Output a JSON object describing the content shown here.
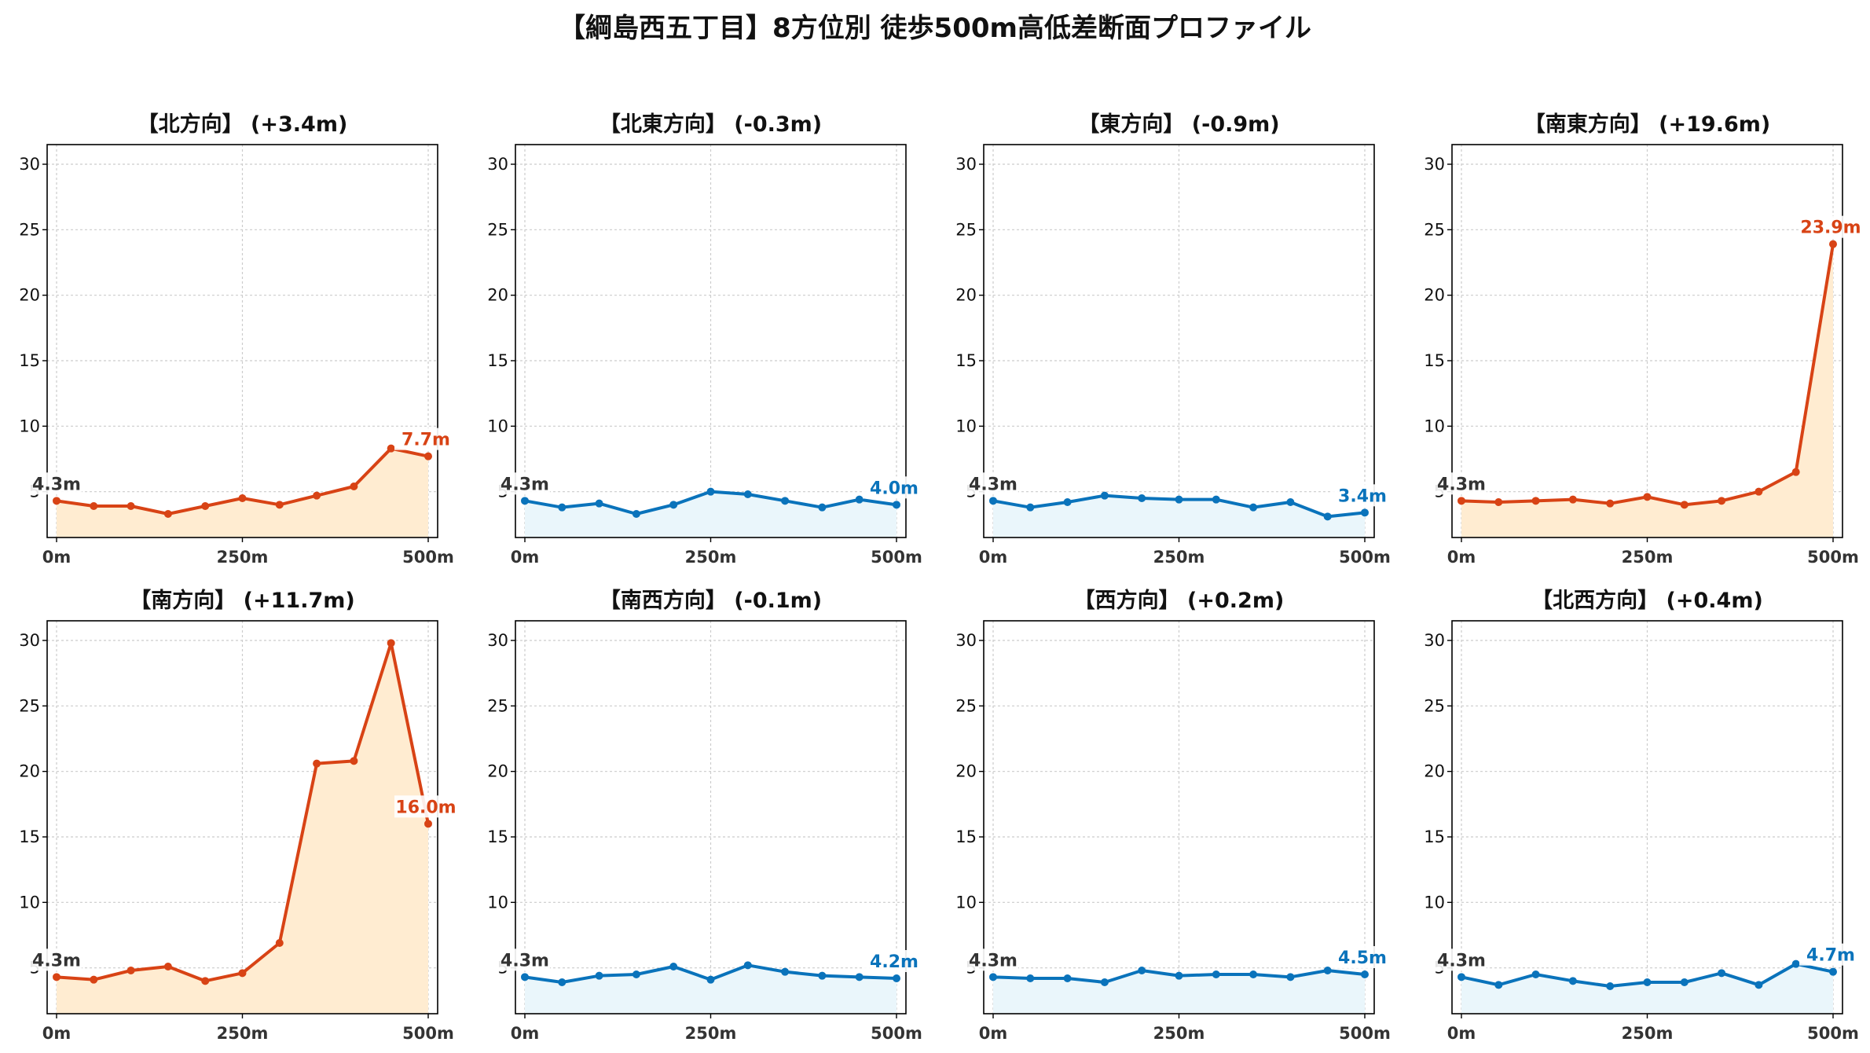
{
  "title": "【綱島西五丁目】8方位別 徒歩500m高低差断面プロファイル",
  "colors": {
    "up_line": "#D84315",
    "up_fill": "#FFECD1",
    "down_line": "#0A73BB",
    "down_fill": "#EAF6FB",
    "grid": "#CCCCCC",
    "start_label": "#333333"
  },
  "chart_data": [
    {
      "type": "line",
      "title": "【北方向】 (+3.4m)",
      "trend": "up",
      "x": [
        0,
        50,
        100,
        150,
        200,
        250,
        300,
        350,
        400,
        450,
        500
      ],
      "values": [
        4.3,
        3.9,
        3.9,
        3.3,
        3.9,
        4.5,
        4.0,
        4.7,
        5.4,
        8.3,
        7.7
      ],
      "start_label": "4.3m",
      "end_label": "7.7m",
      "xticks": [
        "0m",
        "250m",
        "500m"
      ],
      "yticks": [
        "5",
        "10",
        "15",
        "20",
        "25",
        "30"
      ],
      "ylim": [
        1.5,
        31.5
      ],
      "grid": true
    },
    {
      "type": "line",
      "title": "【北東方向】 (-0.3m)",
      "trend": "down",
      "x": [
        0,
        50,
        100,
        150,
        200,
        250,
        300,
        350,
        400,
        450,
        500
      ],
      "values": [
        4.3,
        3.8,
        4.1,
        3.3,
        4.0,
        5.0,
        4.8,
        4.3,
        3.8,
        4.4,
        4.0
      ],
      "start_label": "4.3m",
      "end_label": "4.0m",
      "xticks": [
        "0m",
        "250m",
        "500m"
      ],
      "yticks": [
        "5",
        "10",
        "15",
        "20",
        "25",
        "30"
      ],
      "ylim": [
        1.5,
        31.5
      ],
      "grid": true
    },
    {
      "type": "line",
      "title": "【東方向】 (-0.9m)",
      "trend": "down",
      "x": [
        0,
        50,
        100,
        150,
        200,
        250,
        300,
        350,
        400,
        450,
        500
      ],
      "values": [
        4.3,
        3.8,
        4.2,
        4.7,
        4.5,
        4.4,
        4.4,
        3.8,
        4.2,
        3.1,
        3.4
      ],
      "start_label": "4.3m",
      "end_label": "3.4m",
      "xticks": [
        "0m",
        "250m",
        "500m"
      ],
      "yticks": [
        "5",
        "10",
        "15",
        "20",
        "25",
        "30"
      ],
      "ylim": [
        1.5,
        31.5
      ],
      "grid": true
    },
    {
      "type": "line",
      "title": "【南東方向】 (+19.6m)",
      "trend": "up",
      "x": [
        0,
        50,
        100,
        150,
        200,
        250,
        300,
        350,
        400,
        450,
        500
      ],
      "values": [
        4.3,
        4.2,
        4.3,
        4.4,
        4.1,
        4.6,
        4.0,
        4.3,
        5.0,
        6.5,
        23.9
      ],
      "start_label": "4.3m",
      "end_label": "23.9m",
      "xticks": [
        "0m",
        "250m",
        "500m"
      ],
      "yticks": [
        "5",
        "10",
        "15",
        "20",
        "25",
        "30"
      ],
      "ylim": [
        1.5,
        31.5
      ],
      "grid": true
    },
    {
      "type": "line",
      "title": "【南方向】 (+11.7m)",
      "trend": "up",
      "x": [
        0,
        50,
        100,
        150,
        200,
        250,
        300,
        350,
        400,
        450,
        500
      ],
      "values": [
        4.3,
        4.1,
        4.8,
        5.1,
        4.0,
        4.6,
        6.9,
        20.6,
        20.8,
        29.8,
        16.0
      ],
      "start_label": "4.3m",
      "end_label": "16.0m",
      "xticks": [
        "0m",
        "250m",
        "500m"
      ],
      "yticks": [
        "5",
        "10",
        "15",
        "20",
        "25",
        "30"
      ],
      "ylim": [
        1.5,
        31.5
      ],
      "grid": true
    },
    {
      "type": "line",
      "title": "【南西方向】 (-0.1m)",
      "trend": "down",
      "x": [
        0,
        50,
        100,
        150,
        200,
        250,
        300,
        350,
        400,
        450,
        500
      ],
      "values": [
        4.3,
        3.9,
        4.4,
        4.5,
        5.1,
        4.1,
        5.2,
        4.7,
        4.4,
        4.3,
        4.2
      ],
      "start_label": "4.3m",
      "end_label": "4.2m",
      "xticks": [
        "0m",
        "250m",
        "500m"
      ],
      "yticks": [
        "5",
        "10",
        "15",
        "20",
        "25",
        "30"
      ],
      "ylim": [
        1.5,
        31.5
      ],
      "grid": true
    },
    {
      "type": "line",
      "title": "【西方向】 (+0.2m)",
      "trend": "down",
      "x": [
        0,
        50,
        100,
        150,
        200,
        250,
        300,
        350,
        400,
        450,
        500
      ],
      "values": [
        4.3,
        4.2,
        4.2,
        3.9,
        4.8,
        4.4,
        4.5,
        4.5,
        4.3,
        4.8,
        4.5
      ],
      "start_label": "4.3m",
      "end_label": "4.5m",
      "xticks": [
        "0m",
        "250m",
        "500m"
      ],
      "yticks": [
        "5",
        "10",
        "15",
        "20",
        "25",
        "30"
      ],
      "ylim": [
        1.5,
        31.5
      ],
      "grid": true
    },
    {
      "type": "line",
      "title": "【北西方向】 (+0.4m)",
      "trend": "down",
      "x": [
        0,
        50,
        100,
        150,
        200,
        250,
        300,
        350,
        400,
        450,
        500
      ],
      "values": [
        4.3,
        3.7,
        4.5,
        4.0,
        3.6,
        3.9,
        3.9,
        4.6,
        3.7,
        5.3,
        4.7
      ],
      "start_label": "4.3m",
      "end_label": "4.7m",
      "xticks": [
        "0m",
        "250m",
        "500m"
      ],
      "yticks": [
        "5",
        "10",
        "15",
        "20",
        "25",
        "30"
      ],
      "ylim": [
        1.5,
        31.5
      ],
      "grid": true
    }
  ]
}
